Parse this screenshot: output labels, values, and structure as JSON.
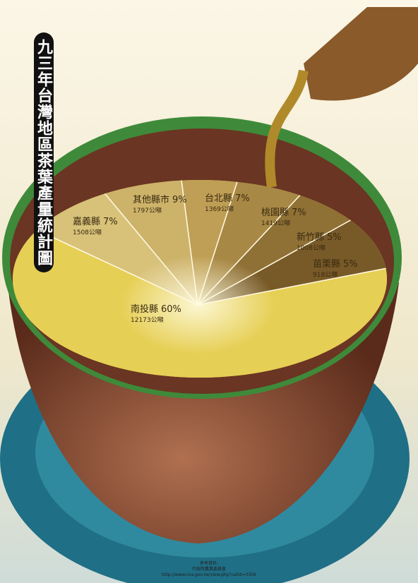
{
  "chart_data": {
    "type": "pie",
    "title": "九三年台灣地區茶葉產量統計圖",
    "categories": [
      "南投縣",
      "嘉義縣",
      "其他縣市",
      "台北縣",
      "桃園縣",
      "新竹縣",
      "苗栗縣"
    ],
    "values": [
      60,
      7,
      9,
      7,
      7,
      5,
      5
    ],
    "value_labels": [
      "60%",
      "7%",
      "9%",
      "7%",
      "7%",
      "5%",
      "5%"
    ],
    "amounts": [
      "12173公噸",
      "1508公噸",
      "1797公噸",
      "1369公噸",
      "1419公噸",
      "1008公噸",
      "918公噸"
    ],
    "colors": [
      "#e6cf55",
      "#d8c27a",
      "#cdb36a",
      "#bf9f55",
      "#a88845",
      "#8f7035",
      "#785a28"
    ],
    "source": [
      "參考資料:",
      "行政院農業委員會",
      "http://www.coa.gov.tw/view.php?catid=3306"
    ]
  }
}
